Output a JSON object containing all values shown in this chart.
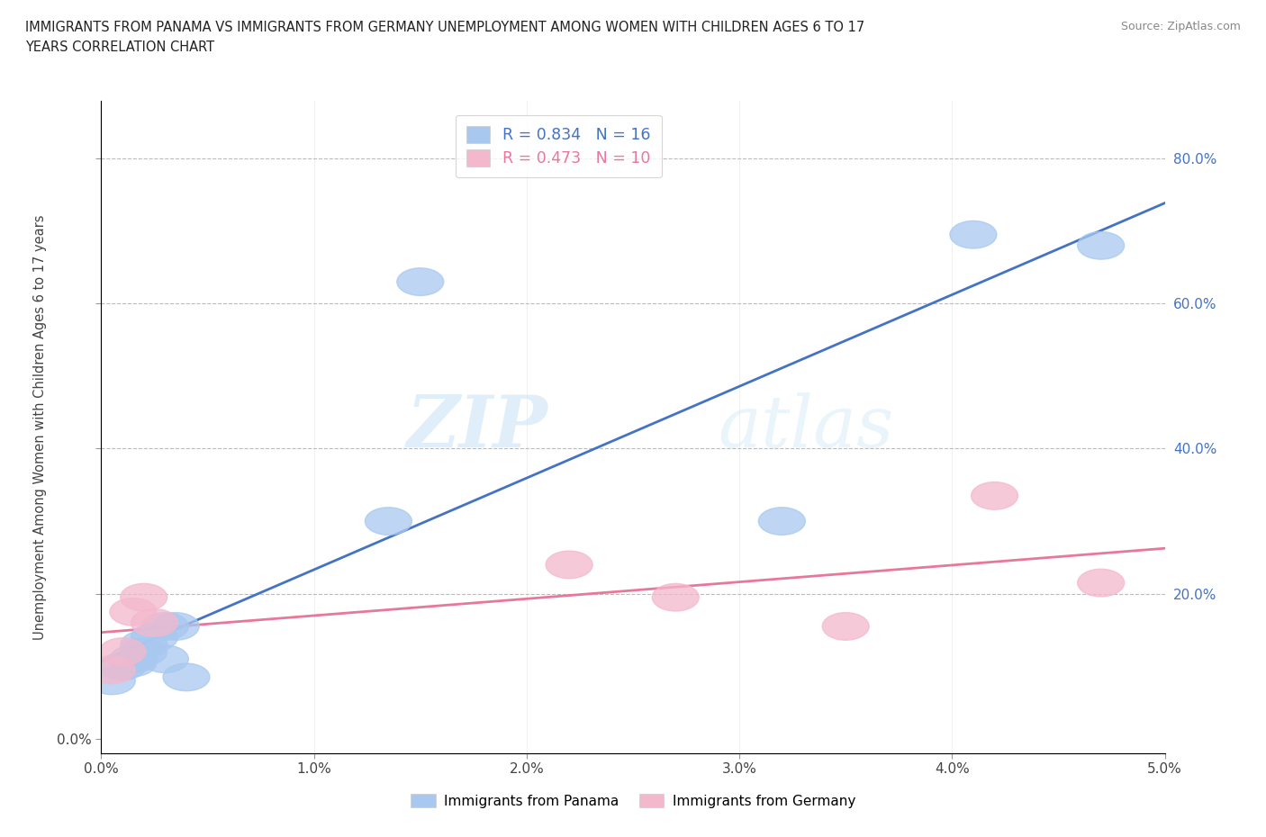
{
  "title_line1": "IMMIGRANTS FROM PANAMA VS IMMIGRANTS FROM GERMANY UNEMPLOYMENT AMONG WOMEN WITH CHILDREN AGES 6 TO 17",
  "title_line2": "YEARS CORRELATION CHART",
  "source": "Source: ZipAtlas.com",
  "ylabel": "Unemployment Among Women with Children Ages 6 to 17 years",
  "xlim": [
    0.0,
    0.05
  ],
  "ylim": [
    -0.02,
    0.88
  ],
  "xticks": [
    0.0,
    0.01,
    0.02,
    0.03,
    0.04,
    0.05
  ],
  "yticks_left": [
    0.0,
    0.2,
    0.4,
    0.6,
    0.8
  ],
  "yticks_right": [
    0.2,
    0.4,
    0.6,
    0.8
  ],
  "xticklabels": [
    "0.0%",
    "1.0%",
    "2.0%",
    "3.0%",
    "4.0%",
    "5.0%"
  ],
  "yticklabels_left": [
    "0.0%",
    "20.0%",
    "40.0%",
    "60.0%",
    "80.0%"
  ],
  "yticklabels_right": [
    "20.0%",
    "40.0%",
    "60.0%",
    "80.0%"
  ],
  "panama_x": [
    0.0005,
    0.001,
    0.0015,
    0.0015,
    0.002,
    0.002,
    0.0025,
    0.003,
    0.003,
    0.0035,
    0.004,
    0.0135,
    0.015,
    0.032,
    0.041,
    0.047
  ],
  "panama_y": [
    0.08,
    0.1,
    0.11,
    0.105,
    0.12,
    0.13,
    0.14,
    0.11,
    0.155,
    0.155,
    0.085,
    0.3,
    0.63,
    0.3,
    0.695,
    0.68
  ],
  "germany_x": [
    0.0005,
    0.001,
    0.0015,
    0.002,
    0.0025,
    0.022,
    0.027,
    0.035,
    0.042,
    0.047
  ],
  "germany_y": [
    0.095,
    0.12,
    0.175,
    0.195,
    0.16,
    0.24,
    0.195,
    0.155,
    0.335,
    0.215
  ],
  "panama_color": "#a8c8f0",
  "germany_color": "#f4b8cc",
  "panama_line_color": "#4472c4",
  "germany_line_color": "#e8789a",
  "right_yaxis_color": "#4472c4",
  "panama_R": 0.834,
  "panama_N": 16,
  "germany_R": 0.473,
  "germany_N": 10,
  "watermark_zip": "ZIP",
  "watermark_atlas": "atlas",
  "background_color": "#ffffff",
  "grid_color": "#bbbbbb"
}
